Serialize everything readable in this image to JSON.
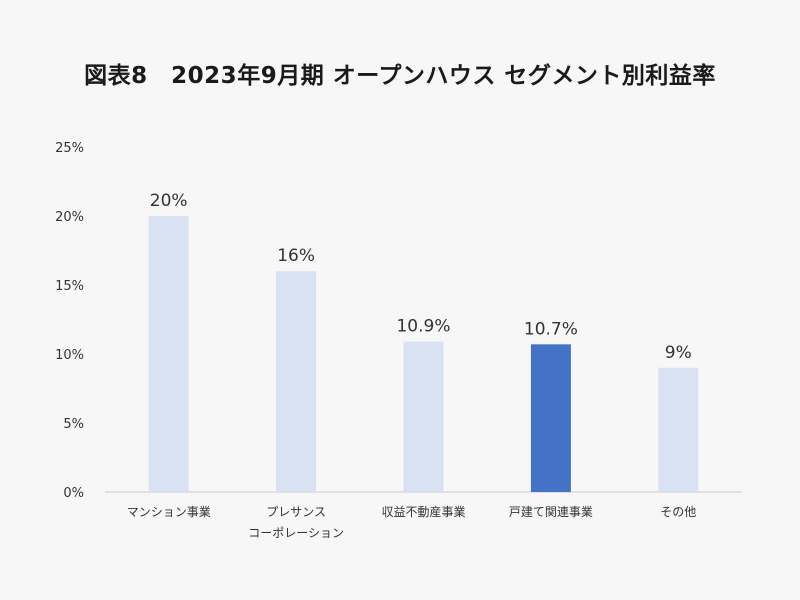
{
  "chart_data": {
    "type": "bar",
    "title": "図表8　2023年9月期 オープンハウス セグメント別利益率",
    "categories": [
      [
        "マンション事業"
      ],
      [
        "プレサンス",
        "コーポレーション"
      ],
      [
        "収益不動産事業"
      ],
      [
        "戸建て関連事業"
      ],
      [
        "その他"
      ]
    ],
    "values": [
      20,
      16,
      10.9,
      10.7,
      9
    ],
    "data_labels": [
      "20%",
      "16%",
      "10.9%",
      "10.7%",
      "9%"
    ],
    "highlight_index": 3,
    "ylim": [
      0,
      25
    ],
    "yticks": [
      0,
      5,
      10,
      15,
      20,
      25
    ],
    "ytick_labels": [
      "0%",
      "5%",
      "10%",
      "15%",
      "20%",
      "25%"
    ],
    "grid": false,
    "xlabel": "",
    "ylabel": "",
    "colors": {
      "bar": "#d9e2f3",
      "highlight": "#4472c4",
      "axis": "#c8c8c8",
      "tick_text": "#333333",
      "label_text": "#333333"
    }
  }
}
